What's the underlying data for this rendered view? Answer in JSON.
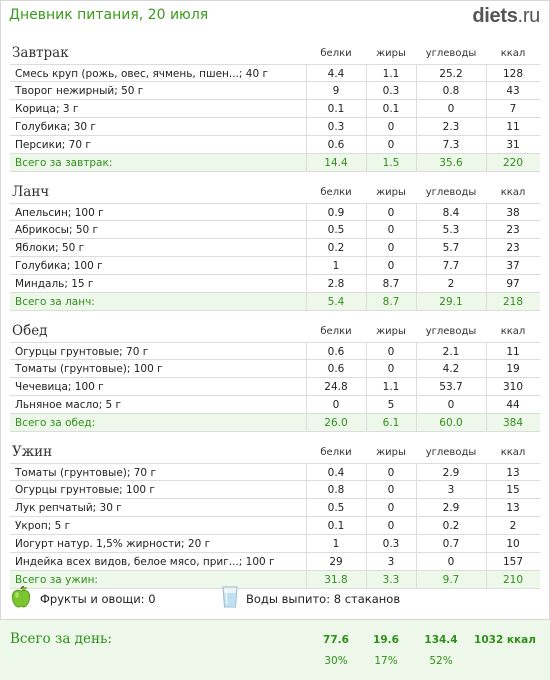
{
  "header": {
    "title": "Дневник питания, 20 июля",
    "logo": {
      "name": "diets",
      "dot": ".",
      "tld": "ru"
    }
  },
  "columns": {
    "protein": "белки",
    "fat": "жиры",
    "carbs": "углеводы",
    "kcal": "ккал"
  },
  "meals": [
    {
      "name": "Завтрак",
      "rows": [
        {
          "name": "Смесь круп (рожь, овес, ячмень, пшен...; 40 г",
          "protein": "4.4",
          "fat": "1.1",
          "carbs": "25.2",
          "kcal": "128"
        },
        {
          "name": "Творог нежирный; 50 г",
          "protein": "9",
          "fat": "0.3",
          "carbs": "0.8",
          "kcal": "43"
        },
        {
          "name": "Корица; 3 г",
          "protein": "0.1",
          "fat": "0.1",
          "carbs": "0",
          "kcal": "7"
        },
        {
          "name": "Голубика; 30 г",
          "protein": "0.3",
          "fat": "0",
          "carbs": "2.3",
          "kcal": "11"
        },
        {
          "name": "Персики; 70 г",
          "protein": "0.6",
          "fat": "0",
          "carbs": "7.3",
          "kcal": "31"
        }
      ],
      "total": {
        "name": "Всего за завтрак:",
        "protein": "14.4",
        "fat": "1.5",
        "carbs": "35.6",
        "kcal": "220"
      }
    },
    {
      "name": "Ланч",
      "rows": [
        {
          "name": "Апельсин; 100 г",
          "protein": "0.9",
          "fat": "0",
          "carbs": "8.4",
          "kcal": "38"
        },
        {
          "name": "Абрикосы; 50 г",
          "protein": "0.5",
          "fat": "0",
          "carbs": "5.3",
          "kcal": "23"
        },
        {
          "name": "Яблоки; 50 г",
          "protein": "0.2",
          "fat": "0",
          "carbs": "5.7",
          "kcal": "23"
        },
        {
          "name": "Голубика; 100 г",
          "protein": "1",
          "fat": "0",
          "carbs": "7.7",
          "kcal": "37"
        },
        {
          "name": "Миндаль; 15 г",
          "protein": "2.8",
          "fat": "8.7",
          "carbs": "2",
          "kcal": "97"
        }
      ],
      "total": {
        "name": "Всего за ланч:",
        "protein": "5.4",
        "fat": "8.7",
        "carbs": "29.1",
        "kcal": "218"
      }
    },
    {
      "name": "Обед",
      "rows": [
        {
          "name": "Огурцы грунтовые; 70 г",
          "protein": "0.6",
          "fat": "0",
          "carbs": "2.1",
          "kcal": "11"
        },
        {
          "name": "Томаты (грунтовые); 100 г",
          "protein": "0.6",
          "fat": "0",
          "carbs": "4.2",
          "kcal": "19"
        },
        {
          "name": "Чечевица; 100 г",
          "protein": "24.8",
          "fat": "1.1",
          "carbs": "53.7",
          "kcal": "310"
        },
        {
          "name": "Льняное масло; 5 г",
          "protein": "0",
          "fat": "5",
          "carbs": "0",
          "kcal": "44"
        }
      ],
      "total": {
        "name": "Всего за обед:",
        "protein": "26.0",
        "fat": "6.1",
        "carbs": "60.0",
        "kcal": "384"
      }
    },
    {
      "name": "Ужин",
      "rows": [
        {
          "name": "Томаты (грунтовые); 70 г",
          "protein": "0.4",
          "fat": "0",
          "carbs": "2.9",
          "kcal": "13"
        },
        {
          "name": "Огурцы грунтовые; 100 г",
          "protein": "0.8",
          "fat": "0",
          "carbs": "3",
          "kcal": "15"
        },
        {
          "name": "Лук репчатый; 30 г",
          "protein": "0.5",
          "fat": "0",
          "carbs": "2.9",
          "kcal": "13"
        },
        {
          "name": "Укроп; 5 г",
          "protein": "0.1",
          "fat": "0",
          "carbs": "0.2",
          "kcal": "2"
        },
        {
          "name": "Йогурт натур. 1,5% жирности; 20 г",
          "protein": "1",
          "fat": "0.3",
          "carbs": "0.7",
          "kcal": "10"
        },
        {
          "name": "Индейка всех видов, белое мясо, приг...; 100 г",
          "protein": "29",
          "fat": "3",
          "carbs": "0",
          "kcal": "157"
        }
      ],
      "total": {
        "name": "Всего за ужин:",
        "protein": "31.8",
        "fat": "3.3",
        "carbs": "9.7",
        "kcal": "210"
      }
    }
  ],
  "extras": {
    "fruit": {
      "icon": "apple-icon",
      "label": "Фрукты и овощи: 0"
    },
    "water": {
      "icon": "glass-icon",
      "label": "Воды выпито: 8 стаканов"
    }
  },
  "day_total": {
    "label": "Всего за день:",
    "protein": "77.6",
    "fat": "19.6",
    "carbs": "134.4",
    "kcal": "1032 ккал",
    "protein_pct": "30%",
    "fat_pct": "17%",
    "carbs_pct": "52%"
  },
  "colors": {
    "accent_green": "#2f8f1a",
    "title_green": "#3a9a1a",
    "total_bg": "#eef8ea"
  }
}
